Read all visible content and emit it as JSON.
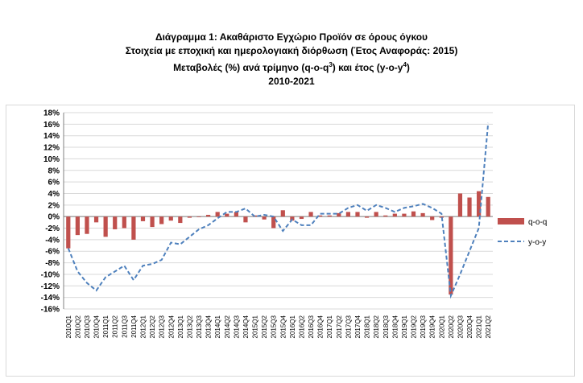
{
  "title": {
    "line1": "Διάγραμμα 1: Ακαθάριστο Εγχώριο Προϊόν σε όρους όγκου",
    "line2": "Στοιχεία με εποχική και ημερολογιακή διόρθωση (Έτος Αναφοράς: 2015)",
    "line3_pre": "Μεταβολές (%) ανά τρίμηνο (q-o-q",
    "line3_sup1": "3",
    "line3_mid": ") και έτος (y-o-y",
    "line3_sup2": "4",
    "line3_post": ")",
    "line4": "2010-2021"
  },
  "colors": {
    "bar": "#c0504d",
    "line": "#4f81bd",
    "grid": "#d9d9d9"
  },
  "chart_data": {
    "type": "bar",
    "title": "Διάγραμμα 1: Ακαθάριστο Εγχώριο Προϊόν σε όρους όγκου",
    "subtitle": "Στοιχεία με εποχική και ημερολογιακή διόρθωση (Έτος Αναφοράς: 2015) — Μεταβολές (%) ανά τρίμηνο (q-o-q3) και έτος (y-o-y4) — 2010-2021",
    "ylim": [
      -16,
      18
    ],
    "yticks": [
      18,
      16,
      14,
      12,
      10,
      8,
      6,
      4,
      2,
      0,
      -2,
      -4,
      -6,
      -8,
      -10,
      -12,
      -14,
      -16
    ],
    "ytick_labels": [
      "18%",
      "16%",
      "14%",
      "12%",
      "10%",
      "8%",
      "6%",
      "4%",
      "2%",
      "0%",
      "-2%",
      "-4%",
      "-6%",
      "-8%",
      "-10%",
      "-12%",
      "-14%",
      "-16%"
    ],
    "grid": true,
    "legend_position": "right",
    "categories": [
      "2010Q1",
      "2010Q2",
      "2010Q3",
      "2010Q4",
      "2011Q1",
      "2011Q2",
      "2011Q3",
      "2011Q4",
      "2012Q1",
      "2012Q2",
      "2012Q3",
      "2012Q4",
      "2013Q1",
      "2013Q2",
      "2013Q3",
      "2013Q4",
      "2014Q1",
      "2014Q2",
      "2014Q3",
      "2014Q4",
      "2015Q1",
      "2015Q2",
      "2015Q3",
      "2015Q4",
      "2016Q1",
      "2016Q2",
      "2016Q3",
      "2016Q4",
      "2017Q1",
      "2017Q2",
      "2017Q3",
      "2017Q4",
      "2018Q1",
      "2018Q2",
      "2018Q3",
      "2018Q4",
      "2019Q1",
      "2019Q2",
      "2019Q3",
      "2019Q4",
      "2020Q1",
      "2020Q2",
      "2020Q3",
      "2020Q4",
      "2021Q1",
      "2021Q2"
    ],
    "series": [
      {
        "name": "q-o-q",
        "kind": "bar",
        "values": [
          -5.5,
          -3.2,
          -3.0,
          -1.0,
          -3.5,
          -2.2,
          -2.0,
          -4.0,
          -0.8,
          -1.8,
          -1.3,
          -0.7,
          -1.1,
          -0.2,
          -0.1,
          0.3,
          0.8,
          0.5,
          0.8,
          -1.0,
          0.2,
          -0.5,
          -2.0,
          1.1,
          -0.7,
          -0.4,
          0.8,
          0.2,
          0.2,
          0.6,
          0.8,
          0.8,
          -0.2,
          0.8,
          0.2,
          0.5,
          0.5,
          0.9,
          0.6,
          -0.6,
          -0.2,
          -13.5,
          4.0,
          3.3,
          4.4,
          3.4
        ]
      },
      {
        "name": "y-o-y",
        "kind": "line",
        "values": [
          -5.5,
          -9.5,
          -11.5,
          -12.8,
          -10.5,
          -9.5,
          -8.5,
          -11.0,
          -8.5,
          -8.2,
          -7.5,
          -4.5,
          -4.8,
          -3.5,
          -2.2,
          -1.5,
          -0.3,
          0.8,
          0.8,
          1.4,
          0.0,
          0.3,
          0.0,
          -2.5,
          -0.5,
          -1.5,
          -1.5,
          0.5,
          0.5,
          0.5,
          1.5,
          2.0,
          1.0,
          2.0,
          1.5,
          0.8,
          1.5,
          1.8,
          2.2,
          1.5,
          0.5,
          -13.7,
          -10.0,
          -6.0,
          -2.0,
          16.2
        ]
      }
    ]
  }
}
